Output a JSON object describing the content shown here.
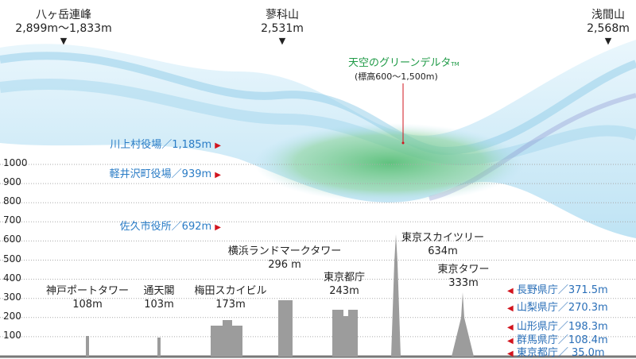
{
  "peaks": [
    {
      "name": "八ヶ岳連峰",
      "elevation": "2,899m〜1,833m"
    },
    {
      "name": "蓼科山",
      "elevation": "2,531m"
    },
    {
      "name": "浅間山",
      "elevation": "2,568m"
    }
  ],
  "peak_marker": "▼",
  "green_delta": {
    "title": "天空のグリーンデルタ",
    "tm": "TM",
    "range": "(標高600〜1,500m)",
    "color": "#1e9a46"
  },
  "y_axis": {
    "ticks": [
      "1000",
      "900",
      "800",
      "700",
      "600",
      "500",
      "400",
      "300",
      "200",
      "100"
    ]
  },
  "offices": [
    {
      "label": "川上村役場／1,185m",
      "marker": "▶",
      "elevation": 1185
    },
    {
      "label": "軽井沢町役場／939m",
      "marker": "▶",
      "elevation": 939
    },
    {
      "label": "佐久市役所／692m",
      "marker": "▶",
      "elevation": 692
    }
  ],
  "buildings": [
    {
      "name": "神戸ポートタワー",
      "height": "108m",
      "value": 108
    },
    {
      "name": "通天閣",
      "height": "103m",
      "value": 103
    },
    {
      "name": "梅田スカイビル",
      "height": "173m",
      "value": 173
    },
    {
      "name": "横浜ランドマークタワー",
      "height": "296 m",
      "value": 296
    },
    {
      "name": "東京都庁",
      "height": "243m",
      "value": 243
    },
    {
      "name": "東京スカイツリー",
      "height": "634m",
      "value": 634
    },
    {
      "name": "東京タワー",
      "height": "333m",
      "value": 333
    }
  ],
  "prefectures": [
    {
      "label": "長野県庁／371.5m",
      "marker": "◀",
      "elevation": 371.5
    },
    {
      "label": "山梨県庁／270.3m",
      "marker": "◀",
      "elevation": 270.3
    },
    {
      "label": "山形県庁／198.3m",
      "marker": "◀",
      "elevation": 198.3
    },
    {
      "label": "群馬県庁／108.4m",
      "marker": "◀",
      "elevation": 108.4
    },
    {
      "label": "東京都庁／  35.0m",
      "marker": "◀",
      "elevation": 35.0
    }
  ],
  "colors": {
    "label_blue": "#2a7cc6",
    "marker_red": "#d2141e",
    "building_gray": "#9c9c9c",
    "wave_blue": "#a9dbf2",
    "delta_green": "#4dbb6a"
  }
}
